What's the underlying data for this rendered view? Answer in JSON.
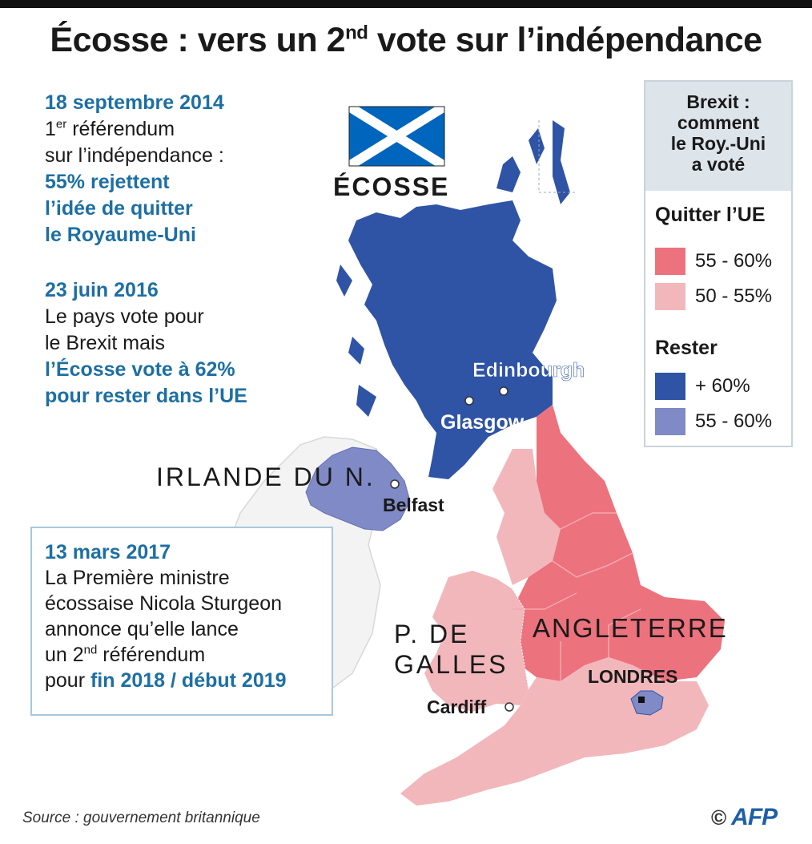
{
  "title": {
    "main": "Écosse : vers un 2",
    "sup": "nd",
    "rest": " vote sur l’indépendance"
  },
  "timeline": [
    {
      "date": "18 septembre 2014",
      "line1_pre": "1",
      "line1_sup": "er",
      "line1_post": " référendum",
      "line2": "sur l’indépendance :",
      "highlight": [
        "55% rejettent",
        "l’idée de quitter",
        "le Royaume-Uni"
      ]
    },
    {
      "date": "23 juin 2016",
      "lines": [
        "Le pays vote pour",
        "le Brexit mais"
      ],
      "highlight": [
        "l’Écosse vote à 62%",
        "pour rester dans l’UE"
      ]
    }
  ],
  "box": {
    "date": "13 mars 2017",
    "line1": "La Première ministre",
    "line2": "écossaise Nicola Sturgeon",
    "line3": "annonce qu’elle lance",
    "line4_pre": "un 2",
    "line4_sup": "nd",
    "line4_post": " référendum",
    "line5_pre": "pour ",
    "line5_hl": "fin 2018 / début 2019"
  },
  "legend": {
    "title": [
      "Brexit :",
      "comment",
      "le Roy.-Uni",
      "a voté"
    ],
    "group_leave": "Quitter l’UE",
    "leave_items": [
      {
        "label": "55 - 60%",
        "color": "#ec727d"
      },
      {
        "label": "50 - 55%",
        "color": "#f2b7bb"
      }
    ],
    "group_remain": "Rester",
    "remain_items": [
      {
        "label": "+ 60%",
        "color": "#2f54a5"
      },
      {
        "label": "55 - 60%",
        "color": "#7f8ac6"
      }
    ]
  },
  "map_labels": {
    "scotland": "ÉCOSSE",
    "northern_ireland": "IRLANDE DU N.",
    "wales_1": "P. DE",
    "wales_2": "GALLES",
    "england": "ANGLETERRE",
    "london": "LONDRES",
    "edinburgh": "Edinbourgh",
    "glasgow": "Glasgow",
    "belfast": "Belfast",
    "cardiff": "Cardiff"
  },
  "source": "Source : gouvernement britannique",
  "credit": {
    "symbol": "©",
    "agency": "AFP"
  }
}
